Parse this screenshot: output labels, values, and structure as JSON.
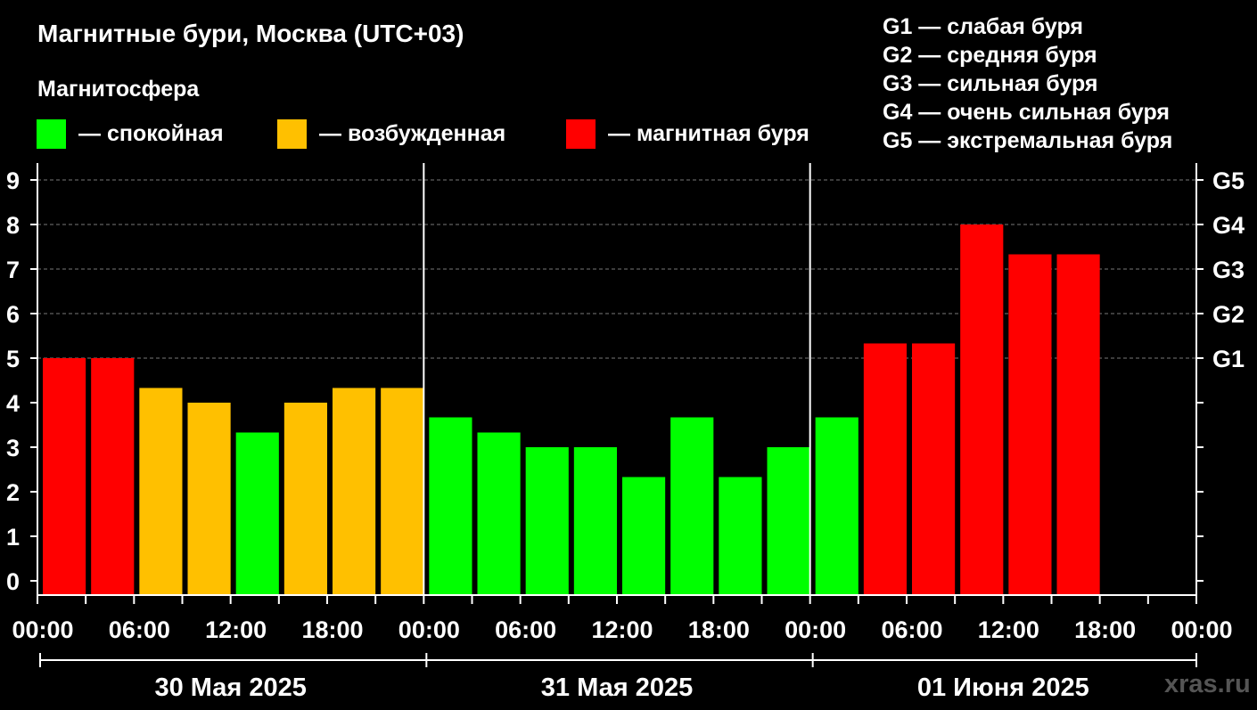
{
  "title": "Магнитные бури, Москва (UTC+03)",
  "subtitle": "Магнитосфера",
  "legend": [
    {
      "label": "— спокойная",
      "color": "#00ff00"
    },
    {
      "label": "— возбужденная",
      "color": "#ffc000"
    },
    {
      "label": "— магнитная буря",
      "color": "#ff0000"
    }
  ],
  "g_legend": [
    "G1 — слабая буря",
    "G2 — средняя буря",
    "G3 — сильная буря",
    "G4 — очень сильная буря",
    "G5 — экстремальная буря"
  ],
  "watermark": "xras.ru",
  "chart_data": {
    "type": "bar",
    "y_ticks": [
      "0",
      "1",
      "2",
      "3",
      "4",
      "5",
      "6",
      "7",
      "8",
      "9"
    ],
    "ylim": [
      0,
      9.7
    ],
    "right_ticks": [
      {
        "value": 5,
        "label": "G1"
      },
      {
        "value": 6,
        "label": "G2"
      },
      {
        "value": 7,
        "label": "G3"
      },
      {
        "value": 8,
        "label": "G4"
      },
      {
        "value": 9,
        "label": "G5"
      }
    ],
    "x_tick_labels": [
      "00:00",
      "06:00",
      "12:00",
      "18:00",
      "00:00",
      "06:00",
      "12:00",
      "18:00",
      "00:00",
      "06:00",
      "12:00",
      "18:00",
      "00:00"
    ],
    "days": [
      "30 Мая 2025",
      "31 Мая 2025",
      "01 Июня 2025"
    ],
    "slots_per_day": 8,
    "grid": "dashed at G levels",
    "bars": [
      {
        "value": 5.0,
        "level": "storm"
      },
      {
        "value": 5.0,
        "level": "storm"
      },
      {
        "value": 4.33,
        "level": "excited"
      },
      {
        "value": 4.0,
        "level": "excited"
      },
      {
        "value": 3.33,
        "level": "calm"
      },
      {
        "value": 4.0,
        "level": "excited"
      },
      {
        "value": 4.33,
        "level": "excited"
      },
      {
        "value": 4.33,
        "level": "excited"
      },
      {
        "value": 3.67,
        "level": "calm"
      },
      {
        "value": 3.33,
        "level": "calm"
      },
      {
        "value": 3.0,
        "level": "calm"
      },
      {
        "value": 3.0,
        "level": "calm"
      },
      {
        "value": 2.33,
        "level": "calm"
      },
      {
        "value": 3.67,
        "level": "calm"
      },
      {
        "value": 2.33,
        "level": "calm"
      },
      {
        "value": 3.0,
        "level": "calm"
      },
      {
        "value": 3.67,
        "level": "calm"
      },
      {
        "value": 5.33,
        "level": "storm"
      },
      {
        "value": 5.33,
        "level": "storm"
      },
      {
        "value": 8.0,
        "level": "storm"
      },
      {
        "value": 7.33,
        "level": "storm"
      },
      {
        "value": 7.33,
        "level": "storm"
      }
    ],
    "colors": {
      "calm": "#00ff00",
      "excited": "#ffc000",
      "storm": "#ff0000"
    }
  }
}
